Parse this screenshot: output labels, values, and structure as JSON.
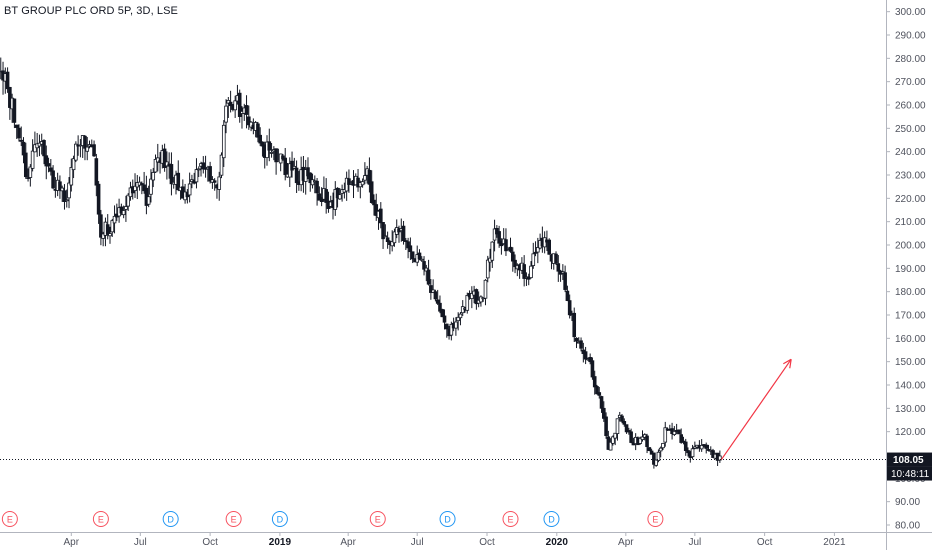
{
  "header": {
    "title": "BT GROUP PLC ORD 5P, 3D, LSE"
  },
  "price_axis": {
    "ticks": [
      "300.00",
      "290.00",
      "280.00",
      "270.00",
      "260.00",
      "250.00",
      "240.00",
      "230.00",
      "220.00",
      "210.00",
      "200.00",
      "190.00",
      "180.00",
      "170.00",
      "160.00",
      "150.00",
      "140.00",
      "130.00",
      "120.00",
      "100.00",
      "90.00",
      "80.00"
    ],
    "last_price_label": "108.05",
    "countdown_label": "10:48:11"
  },
  "time_axis": {
    "ticks": [
      "Apr",
      "Jul",
      "Oct",
      "2019",
      "Apr",
      "Jul",
      "Oct",
      "2020",
      "Apr",
      "Jul",
      "Oct",
      "2021"
    ],
    "bold_ticks": [
      "2019",
      "2020"
    ]
  },
  "events": [
    {
      "type": "E",
      "kind": "earnings"
    },
    {
      "type": "E",
      "kind": "earnings"
    },
    {
      "type": "D",
      "kind": "dividend"
    },
    {
      "type": "E",
      "kind": "earnings"
    },
    {
      "type": "D",
      "kind": "dividend"
    },
    {
      "type": "E",
      "kind": "earnings"
    },
    {
      "type": "D",
      "kind": "dividend"
    },
    {
      "type": "E",
      "kind": "earnings"
    },
    {
      "type": "D",
      "kind": "dividend"
    },
    {
      "type": "E",
      "kind": "earnings"
    }
  ],
  "colors": {
    "candle": "#131722",
    "grid_line": "#dcdde0",
    "last_price_line": "#131722",
    "arrow": "#f23645",
    "earnings": "#f7525f",
    "dividend": "#2196f3",
    "axis_text": "#50535e"
  },
  "chart_data": {
    "type": "candlestick",
    "symbol": "BT GROUP PLC ORD 5P",
    "interval": "3D",
    "exchange": "LSE",
    "ylim": [
      77,
      305
    ],
    "xlim": [
      "2017-12-28",
      "2021-03-10"
    ],
    "last_price": 108.05,
    "dates": [
      "2017-12-29",
      "2018-01-15",
      "2018-02-01",
      "2018-02-20",
      "2018-03-10",
      "2018-03-25",
      "2018-04-10",
      "2018-04-28",
      "2018-05-10",
      "2018-05-22",
      "2018-06-10",
      "2018-06-25",
      "2018-07-10",
      "2018-07-25",
      "2018-08-10",
      "2018-08-25",
      "2018-09-10",
      "2018-09-25",
      "2018-10-10",
      "2018-10-25",
      "2018-11-10",
      "2018-11-25",
      "2018-12-10",
      "2018-12-25",
      "2019-01-10",
      "2019-01-25",
      "2019-02-10",
      "2019-02-25",
      "2019-03-10",
      "2019-03-25",
      "2019-04-10",
      "2019-04-25",
      "2019-05-10",
      "2019-05-25",
      "2019-06-10",
      "2019-06-25",
      "2019-07-10",
      "2019-07-25",
      "2019-08-10",
      "2019-08-25",
      "2019-09-10",
      "2019-09-25",
      "2019-10-10",
      "2019-10-25",
      "2019-11-10",
      "2019-11-25",
      "2019-12-10",
      "2019-12-25",
      "2020-01-10",
      "2020-01-25",
      "2020-02-10",
      "2020-02-25",
      "2020-03-10",
      "2020-03-25",
      "2020-04-10",
      "2020-04-25",
      "2020-05-10",
      "2020-05-25",
      "2020-06-10",
      "2020-06-25",
      "2020-07-10",
      "2020-07-25",
      "2020-08-05"
    ],
    "close": [
      275,
      258,
      230,
      245,
      225,
      222,
      244,
      245,
      205,
      208,
      215,
      230,
      218,
      240,
      230,
      222,
      228,
      235,
      224,
      265,
      258,
      255,
      242,
      238,
      232,
      230,
      228,
      222,
      218,
      225,
      228,
      230,
      212,
      198,
      208,
      195,
      190,
      178,
      162,
      170,
      178,
      178,
      207,
      198,
      190,
      188,
      205,
      196,
      185,
      162,
      152,
      135,
      112,
      128,
      115,
      118,
      105,
      122,
      118,
      110,
      115,
      110,
      108.05
    ],
    "annotations": {
      "horizontal_line": 108.05,
      "arrow": {
        "from": {
          "date": "2020-08-05",
          "price": 108.05
        },
        "to": {
          "date": "2020-11-05",
          "price": 151
        }
      }
    }
  }
}
